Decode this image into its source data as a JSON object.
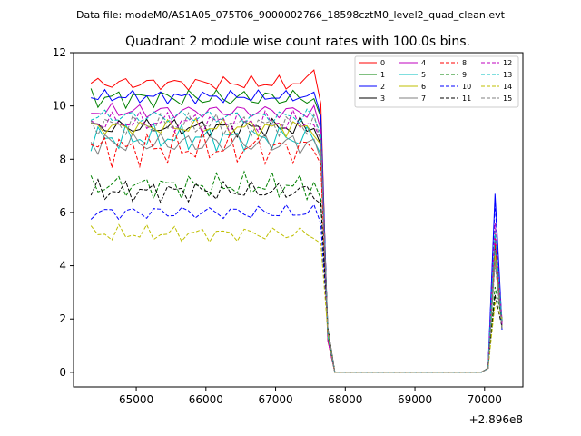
{
  "figure_note": "Data file: modeM0/AS1A05_075T06_9000002766_18598cztM0_level2_quad_clean.evt",
  "chart_data": {
    "type": "line",
    "title": "Quadrant 2 module wise count rates with 100.0s bins.",
    "xlabel": "",
    "ylabel": "",
    "x_offset_label": "+2.896e8",
    "xlim": [
      64100,
      70550
    ],
    "ylim": [
      -0.55,
      12
    ],
    "xticks": [
      65000,
      66000,
      67000,
      68000,
      69000,
      70000
    ],
    "xtick_labels": [
      "65000",
      "66000",
      "67000",
      "68000",
      "69000",
      "70000"
    ],
    "yticks": [
      0,
      2,
      4,
      6,
      8,
      10,
      12
    ],
    "ytick_labels": [
      "0",
      "2",
      "4",
      "6",
      "8",
      "10",
      "12"
    ],
    "grid": false,
    "legend": "top-right, 4 columns",
    "x": [
      64350,
      64450,
      64550,
      64650,
      64750,
      64850,
      64950,
      65050,
      65150,
      65250,
      65350,
      65450,
      65550,
      65650,
      65750,
      65850,
      65950,
      66050,
      66150,
      66250,
      66350,
      66450,
      66550,
      66650,
      66750,
      66850,
      66950,
      67050,
      67150,
      67250,
      67350,
      67450,
      67550,
      67650,
      67750,
      67850,
      67950,
      68050,
      68150,
      68250,
      68350,
      68450,
      68550,
      68650,
      68750,
      68850,
      68950,
      69050,
      69150,
      69250,
      69350,
      69450,
      69550,
      69650,
      69750,
      69850,
      69950,
      70050,
      70150,
      70250
    ],
    "series": [
      {
        "name": "0",
        "color": "#ff0000",
        "dash": "solid",
        "base": 10.85,
        "amp": 0.18,
        "peak": 5.2
      },
      {
        "name": "1",
        "color": "#008000",
        "dash": "solid",
        "base": 10.3,
        "amp": 0.25,
        "peak": 4.5
      },
      {
        "name": "2",
        "color": "#0000ff",
        "dash": "solid",
        "base": 10.35,
        "amp": 0.15,
        "peak": 6.7
      },
      {
        "name": "3",
        "color": "#000000",
        "dash": "solid",
        "base": 9.2,
        "amp": 0.22,
        "peak": 4.8
      },
      {
        "name": "4",
        "color": "#bf00bf",
        "dash": "solid",
        "base": 9.8,
        "amp": 0.2,
        "peak": 5.0
      },
      {
        "name": "5",
        "color": "#00bfbf",
        "dash": "solid",
        "base": 8.8,
        "amp": 0.3,
        "peak": 4.6
      },
      {
        "name": "6",
        "color": "#bfbf00",
        "dash": "solid",
        "base": 9.2,
        "amp": 0.2,
        "peak": 4.4
      },
      {
        "name": "7",
        "color": "#808080",
        "dash": "solid",
        "base": 8.6,
        "amp": 0.3,
        "peak": 4.2
      },
      {
        "name": "8",
        "color": "#ff0000",
        "dash": "dashed",
        "base": 8.4,
        "amp": 0.4,
        "peak": 4.9
      },
      {
        "name": "9",
        "color": "#008000",
        "dash": "dashed",
        "base": 7.0,
        "amp": 0.3,
        "peak": 3.2
      },
      {
        "name": "10",
        "color": "#0000ff",
        "dash": "dashed",
        "base": 6.0,
        "amp": 0.2,
        "peak": 6.4
      },
      {
        "name": "11",
        "color": "#000000",
        "dash": "dashed",
        "base": 6.8,
        "amp": 0.25,
        "peak": 2.9
      },
      {
        "name": "12",
        "color": "#bf00bf",
        "dash": "dashed",
        "base": 9.4,
        "amp": 0.25,
        "peak": 5.6
      },
      {
        "name": "13",
        "color": "#00bfbf",
        "dash": "dashed",
        "base": 9.6,
        "amp": 0.2,
        "peak": 5.3
      },
      {
        "name": "14",
        "color": "#bfbf00",
        "dash": "dashed",
        "base": 5.2,
        "amp": 0.2,
        "peak": 2.6
      },
      {
        "name": "15",
        "color": "#808080",
        "dash": "dashed",
        "base": 9.3,
        "amp": 0.25,
        "peak": 4.1
      }
    ]
  }
}
